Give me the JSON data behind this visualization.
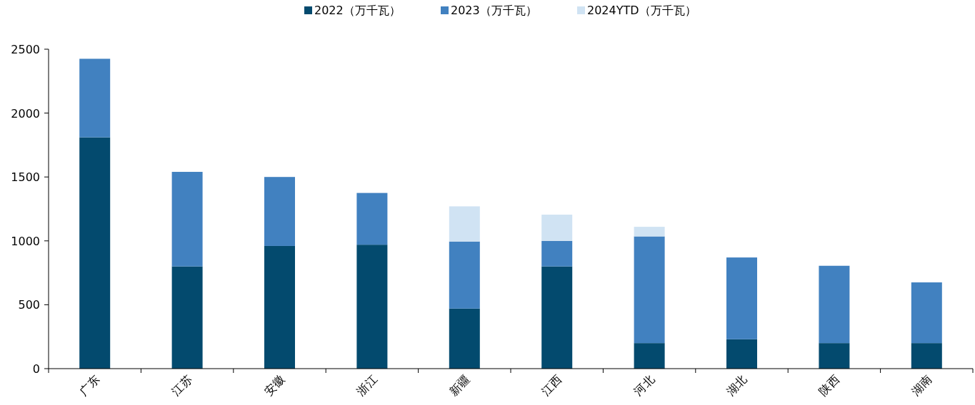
{
  "chart_data": {
    "type": "bar",
    "stacked": true,
    "legend": "top",
    "categories": [
      "广东",
      "江苏",
      "安徽",
      "浙江",
      "新疆",
      "江西",
      "河北",
      "湖北",
      "陕西",
      "湖南"
    ],
    "series": [
      {
        "name": "2022（万千瓦）",
        "color": "#034a6e",
        "values": [
          1810,
          800,
          960,
          970,
          470,
          800,
          200,
          230,
          200,
          200
        ]
      },
      {
        "name": "2023（万千瓦）",
        "color": "#4181c0",
        "values": [
          615,
          740,
          540,
          405,
          525,
          200,
          835,
          640,
          605,
          475
        ]
      },
      {
        "name": "2024YTD（万千瓦）",
        "color": "#d0e3f3",
        "values": [
          null,
          null,
          null,
          null,
          275,
          205,
          75,
          null,
          null,
          null
        ]
      }
    ],
    "ylim": [
      0,
      2500
    ],
    "yticks": [
      0,
      500,
      1000,
      1500,
      2000,
      2500
    ],
    "grid": false
  }
}
